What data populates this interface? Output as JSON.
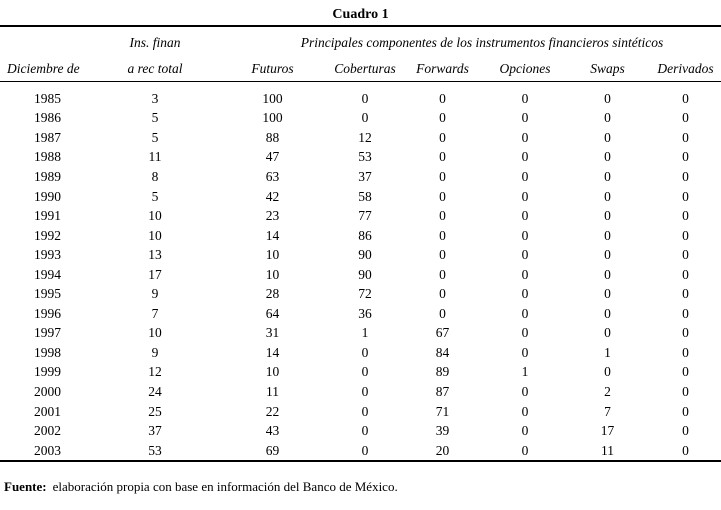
{
  "title": "Cuadro 1",
  "table": {
    "col1_header": "Diciembre de",
    "col2_header_line1": "Ins. finan",
    "col2_header_line2": "a rec total",
    "group_header": "Principales componentes de los instrumentos financieros sintéticos",
    "sub_headers": [
      "Futuros",
      "Coberturas",
      "Forwards",
      "Opciones",
      "Swaps",
      "Derivados"
    ],
    "rows": [
      {
        "year": "1985",
        "values": [
          3,
          100,
          0,
          0,
          0,
          0,
          0
        ]
      },
      {
        "year": "1986",
        "values": [
          5,
          100,
          0,
          0,
          0,
          0,
          0
        ]
      },
      {
        "year": "1987",
        "values": [
          5,
          88,
          12,
          0,
          0,
          0,
          0
        ]
      },
      {
        "year": "1988",
        "values": [
          11,
          47,
          53,
          0,
          0,
          0,
          0
        ]
      },
      {
        "year": "1989",
        "values": [
          8,
          63,
          37,
          0,
          0,
          0,
          0
        ]
      },
      {
        "year": "1990",
        "values": [
          5,
          42,
          58,
          0,
          0,
          0,
          0
        ]
      },
      {
        "year": "1991",
        "values": [
          10,
          23,
          77,
          0,
          0,
          0,
          0
        ]
      },
      {
        "year": "1992",
        "values": [
          10,
          14,
          86,
          0,
          0,
          0,
          0
        ]
      },
      {
        "year": "1993",
        "values": [
          13,
          10,
          90,
          0,
          0,
          0,
          0
        ]
      },
      {
        "year": "1994",
        "values": [
          17,
          10,
          90,
          0,
          0,
          0,
          0
        ]
      },
      {
        "year": "1995",
        "values": [
          9,
          28,
          72,
          0,
          0,
          0,
          0
        ]
      },
      {
        "year": "1996",
        "values": [
          7,
          64,
          36,
          0,
          0,
          0,
          0
        ]
      },
      {
        "year": "1997",
        "values": [
          10,
          31,
          1,
          67,
          0,
          0,
          0
        ]
      },
      {
        "year": "1998",
        "values": [
          9,
          14,
          0,
          84,
          0,
          1,
          0
        ]
      },
      {
        "year": "1999",
        "values": [
          12,
          10,
          0,
          89,
          1,
          0,
          0
        ]
      },
      {
        "year": "2000",
        "values": [
          24,
          11,
          0,
          87,
          0,
          2,
          0
        ]
      },
      {
        "year": "2001",
        "values": [
          25,
          22,
          0,
          71,
          0,
          7,
          0
        ]
      },
      {
        "year": "2002",
        "values": [
          37,
          43,
          0,
          39,
          0,
          17,
          0
        ]
      },
      {
        "year": "2003",
        "values": [
          53,
          69,
          0,
          20,
          0,
          11,
          0
        ]
      }
    ]
  },
  "source": {
    "label": "Fuente:",
    "text": "elaboración propia con base en información del Banco de México."
  }
}
